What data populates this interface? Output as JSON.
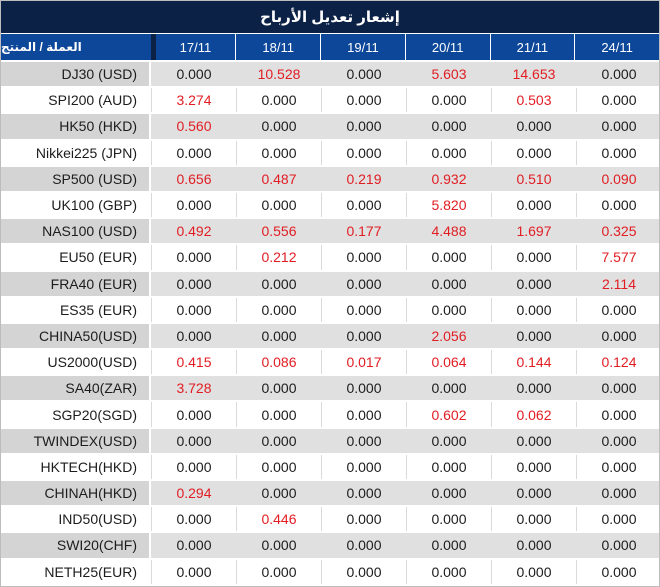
{
  "title": "إشعار تعديل الأرباح",
  "colors": {
    "title_bar_bg": "#0b2145",
    "header_bg": "#0d479a",
    "header_text": "#ffffff",
    "row_gray_label_bg": "#d4d4d4",
    "row_gray_data_bg": "#e0e0e0",
    "row_white_bg": "#ffffff",
    "value_text": "#1c1c1c",
    "value_red": "#e11d23"
  },
  "table": {
    "corner_header": "العملة / المنتج",
    "date_columns": [
      "17/11",
      "18/11",
      "19/11",
      "20/11",
      "21/11",
      "24/11"
    ],
    "rows": [
      {
        "label": "DJ30 (USD)",
        "values": [
          "0.000",
          "10.528",
          "0.000",
          "5.603",
          "14.653",
          "0.000"
        ],
        "red": [
          0,
          1,
          0,
          1,
          1,
          0
        ]
      },
      {
        "label": "SPI200 (AUD)",
        "values": [
          "3.274",
          "0.000",
          "0.000",
          "0.000",
          "0.503",
          "0.000"
        ],
        "red": [
          1,
          0,
          0,
          0,
          1,
          0
        ]
      },
      {
        "label": "HK50 (HKD)",
        "values": [
          "0.560",
          "0.000",
          "0.000",
          "0.000",
          "0.000",
          "0.000"
        ],
        "red": [
          1,
          0,
          0,
          0,
          0,
          0
        ]
      },
      {
        "label": "Nikkei225 (JPN)",
        "values": [
          "0.000",
          "0.000",
          "0.000",
          "0.000",
          "0.000",
          "0.000"
        ],
        "red": [
          0,
          0,
          0,
          0,
          0,
          0
        ]
      },
      {
        "label": "SP500 (USD)",
        "values": [
          "0.656",
          "0.487",
          "0.219",
          "0.932",
          "0.510",
          "0.090"
        ],
        "red": [
          1,
          1,
          1,
          1,
          1,
          1
        ]
      },
      {
        "label": "UK100 (GBP)",
        "values": [
          "0.000",
          "0.000",
          "0.000",
          "5.820",
          "0.000",
          "0.000"
        ],
        "red": [
          0,
          0,
          0,
          1,
          0,
          0
        ]
      },
      {
        "label": "NAS100 (USD)",
        "values": [
          "0.492",
          "0.556",
          "0.177",
          "4.488",
          "1.697",
          "0.325"
        ],
        "red": [
          1,
          1,
          1,
          1,
          1,
          1
        ]
      },
      {
        "label": "EU50 (EUR)",
        "values": [
          "0.000",
          "0.212",
          "0.000",
          "0.000",
          "0.000",
          "7.577"
        ],
        "red": [
          0,
          1,
          0,
          0,
          0,
          1
        ]
      },
      {
        "label": "FRA40 (EUR)",
        "values": [
          "0.000",
          "0.000",
          "0.000",
          "0.000",
          "0.000",
          "2.114"
        ],
        "red": [
          0,
          0,
          0,
          0,
          0,
          1
        ]
      },
      {
        "label": "ES35 (EUR)",
        "values": [
          "0.000",
          "0.000",
          "0.000",
          "0.000",
          "0.000",
          "0.000"
        ],
        "red": [
          0,
          0,
          0,
          0,
          0,
          0
        ]
      },
      {
        "label": "CHINA50(USD)",
        "values": [
          "0.000",
          "0.000",
          "0.000",
          "2.056",
          "0.000",
          "0.000"
        ],
        "red": [
          0,
          0,
          0,
          1,
          0,
          0
        ]
      },
      {
        "label": "US2000(USD)",
        "values": [
          "0.415",
          "0.086",
          "0.017",
          "0.064",
          "0.144",
          "0.124"
        ],
        "red": [
          1,
          1,
          1,
          1,
          1,
          1
        ]
      },
      {
        "label": "SA40(ZAR)",
        "values": [
          "3.728",
          "0.000",
          "0.000",
          "0.000",
          "0.000",
          "0.000"
        ],
        "red": [
          1,
          0,
          0,
          0,
          0,
          0
        ]
      },
      {
        "label": "SGP20(SGD)",
        "values": [
          "0.000",
          "0.000",
          "0.000",
          "0.602",
          "0.062",
          "0.000"
        ],
        "red": [
          0,
          0,
          0,
          1,
          1,
          0
        ]
      },
      {
        "label": "TWINDEX(USD)",
        "values": [
          "0.000",
          "0.000",
          "0.000",
          "0.000",
          "0.000",
          "0.000"
        ],
        "red": [
          0,
          0,
          0,
          0,
          0,
          0
        ]
      },
      {
        "label": "HKTECH(HKD)",
        "values": [
          "0.000",
          "0.000",
          "0.000",
          "0.000",
          "0.000",
          "0.000"
        ],
        "red": [
          0,
          0,
          0,
          0,
          0,
          0
        ]
      },
      {
        "label": "CHINAH(HKD)",
        "values": [
          "0.294",
          "0.000",
          "0.000",
          "0.000",
          "0.000",
          "0.000"
        ],
        "red": [
          1,
          0,
          0,
          0,
          0,
          0
        ]
      },
      {
        "label": "IND50(USD)",
        "values": [
          "0.000",
          "0.446",
          "0.000",
          "0.000",
          "0.000",
          "0.000"
        ],
        "red": [
          0,
          1,
          0,
          0,
          0,
          0
        ]
      },
      {
        "label": "SWI20(CHF)",
        "values": [
          "0.000",
          "0.000",
          "0.000",
          "0.000",
          "0.000",
          "0.000"
        ],
        "red": [
          0,
          0,
          0,
          0,
          0,
          0
        ]
      },
      {
        "label": "NETH25(EUR)",
        "values": [
          "0.000",
          "0.000",
          "0.000",
          "0.000",
          "0.000",
          "0.000"
        ],
        "red": [
          0,
          0,
          0,
          0,
          0,
          0
        ]
      }
    ]
  }
}
